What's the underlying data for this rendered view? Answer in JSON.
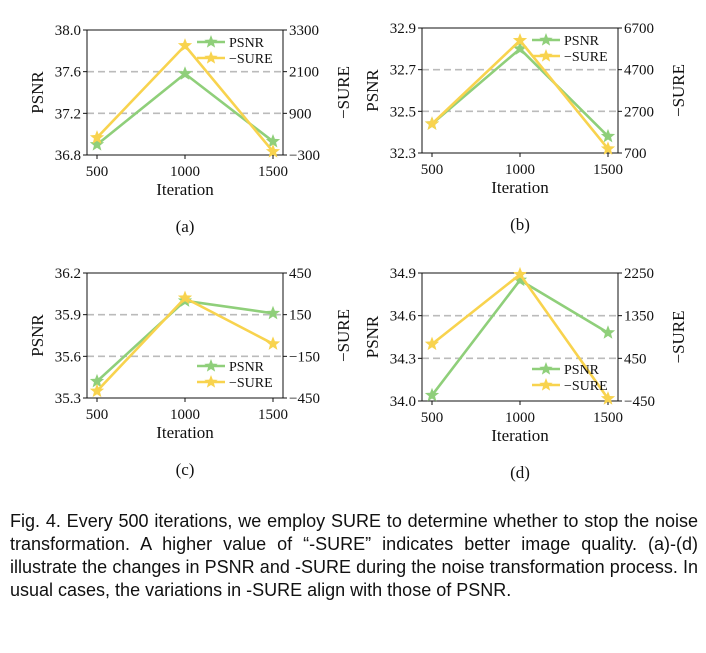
{
  "colors": {
    "psnr": "#8fcf7a",
    "sure": "#f8d34e",
    "grid": "#bbbbbb",
    "axis": "#111111"
  },
  "chart_data": [
    {
      "type": "line",
      "panel_label": "(a)",
      "x": [
        500,
        1000,
        1500
      ],
      "xlabel": "Iteration",
      "xticks": [
        "500",
        "1000",
        "1500"
      ],
      "ylabel": "PSNR",
      "ylim": [
        36.8,
        38.0
      ],
      "yticks": [
        "36.8",
        "37.2",
        "37.6",
        "38.0"
      ],
      "y2label": "−SURE",
      "y2lim": [
        -300,
        3300
      ],
      "y2ticks": [
        "−300",
        "900",
        "2100",
        "3300"
      ],
      "grid": "horizontal dashed",
      "legend": "top-right",
      "series": [
        {
          "name": "PSNR",
          "axis": "left",
          "values": [
            36.9,
            37.58,
            36.93
          ]
        },
        {
          "name": "−SURE",
          "axis": "right",
          "values": [
            200,
            2850,
            -200
          ]
        }
      ]
    },
    {
      "type": "line",
      "panel_label": "(b)",
      "x": [
        500,
        1000,
        1500
      ],
      "xlabel": "Iteration",
      "xticks": [
        "500",
        "1000",
        "1500"
      ],
      "ylabel": "PSNR",
      "ylim": [
        32.3,
        32.9
      ],
      "yticks": [
        "32.3",
        "32.5",
        "32.7",
        "32.9"
      ],
      "y2label": "−SURE",
      "y2lim": [
        700,
        6700
      ],
      "y2ticks": [
        "700",
        "2700",
        "4700",
        "6700"
      ],
      "grid": "horizontal dashed",
      "legend": "top-right",
      "series": [
        {
          "name": "PSNR",
          "axis": "left",
          "values": [
            32.44,
            32.8,
            32.38
          ]
        },
        {
          "name": "−SURE",
          "axis": "right",
          "values": [
            2100,
            6100,
            900
          ]
        }
      ]
    },
    {
      "type": "line",
      "panel_label": "(c)",
      "x": [
        500,
        1000,
        1500
      ],
      "xlabel": "Iteration",
      "xticks": [
        "500",
        "1000",
        "1500"
      ],
      "ylabel": "PSNR",
      "ylim": [
        35.3,
        36.2
      ],
      "yticks": [
        "35.3",
        "35.6",
        "35.9",
        "36.2"
      ],
      "y2label": "−SURE",
      "y2lim": [
        -450,
        450
      ],
      "y2ticks": [
        "−450",
        "−150",
        "150",
        "450"
      ],
      "grid": "horizontal dashed",
      "legend": "bottom-right",
      "series": [
        {
          "name": "PSNR",
          "axis": "left",
          "values": [
            35.42,
            36.0,
            35.91
          ]
        },
        {
          "name": "−SURE",
          "axis": "right",
          "values": [
            -400,
            270,
            -60
          ]
        }
      ]
    },
    {
      "type": "line",
      "panel_label": "(d)",
      "x": [
        500,
        1000,
        1500
      ],
      "xlabel": "Iteration",
      "xticks": [
        "500",
        "1000",
        "1500"
      ],
      "ylabel": "PSNR",
      "ylim": [
        34.0,
        34.9
      ],
      "yticks": [
        "34.0",
        "34.3",
        "34.6",
        "34.9"
      ],
      "y2label": "−SURE",
      "y2lim": [
        -450,
        2250
      ],
      "y2ticks": [
        "−450",
        "450",
        "1350",
        "2250"
      ],
      "grid": "horizontal dashed",
      "legend": "bottom-right",
      "series": [
        {
          "name": "PSNR",
          "axis": "left",
          "values": [
            34.04,
            34.85,
            34.48
          ]
        },
        {
          "name": "−SURE",
          "axis": "right",
          "values": [
            750,
            2220,
            -400
          ]
        }
      ]
    }
  ],
  "caption": "Fig. 4.  Every 500 iterations, we employ SURE to determine whether to stop the noise transformation. A higher value of “-SURE” indicates better image quality. (a)-(d) illustrate the changes in PSNR and -SURE during the noise transformation process. In usual cases, the variations in -SURE align with those of PSNR."
}
